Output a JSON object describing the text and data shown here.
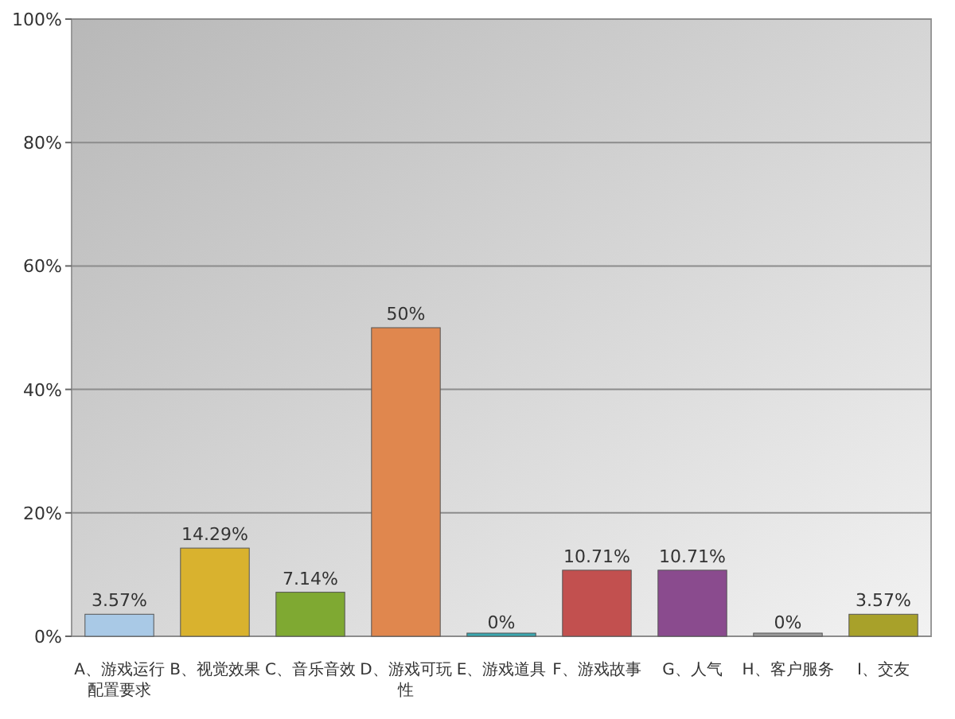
{
  "chart_data": {
    "type": "bar",
    "categories": [
      "A、游戏运行配置要求",
      "B、视觉效果",
      "C、音乐音效",
      "D、游戏可玩性",
      "E、游戏道具",
      "F、游戏故事",
      "G、人气",
      "H、客户服务",
      "I、交友"
    ],
    "values": [
      3.57,
      14.29,
      7.14,
      50,
      0,
      10.71,
      10.71,
      0,
      3.57
    ],
    "colors": [
      "#a9c9e6",
      "#d9b22e",
      "#7fa932",
      "#e0874e",
      "#3aa7b0",
      "#c2504f",
      "#8a4b8e",
      "#9a9a9a",
      "#a8a12a"
    ],
    "value_labels": [
      "3.57%",
      "14.29%",
      "7.14%",
      "50%",
      "0%",
      "10.71%",
      "10.71%",
      "0%",
      "3.57%"
    ],
    "ylim": [
      0,
      100
    ],
    "yticks": [
      {
        "value": 0,
        "label": "0%"
      },
      {
        "value": 20,
        "label": "20%"
      },
      {
        "value": 40,
        "label": "40%"
      },
      {
        "value": 60,
        "label": "60%"
      },
      {
        "value": 80,
        "label": "80%"
      },
      {
        "value": 100,
        "label": "100%"
      }
    ],
    "grid": "y"
  }
}
